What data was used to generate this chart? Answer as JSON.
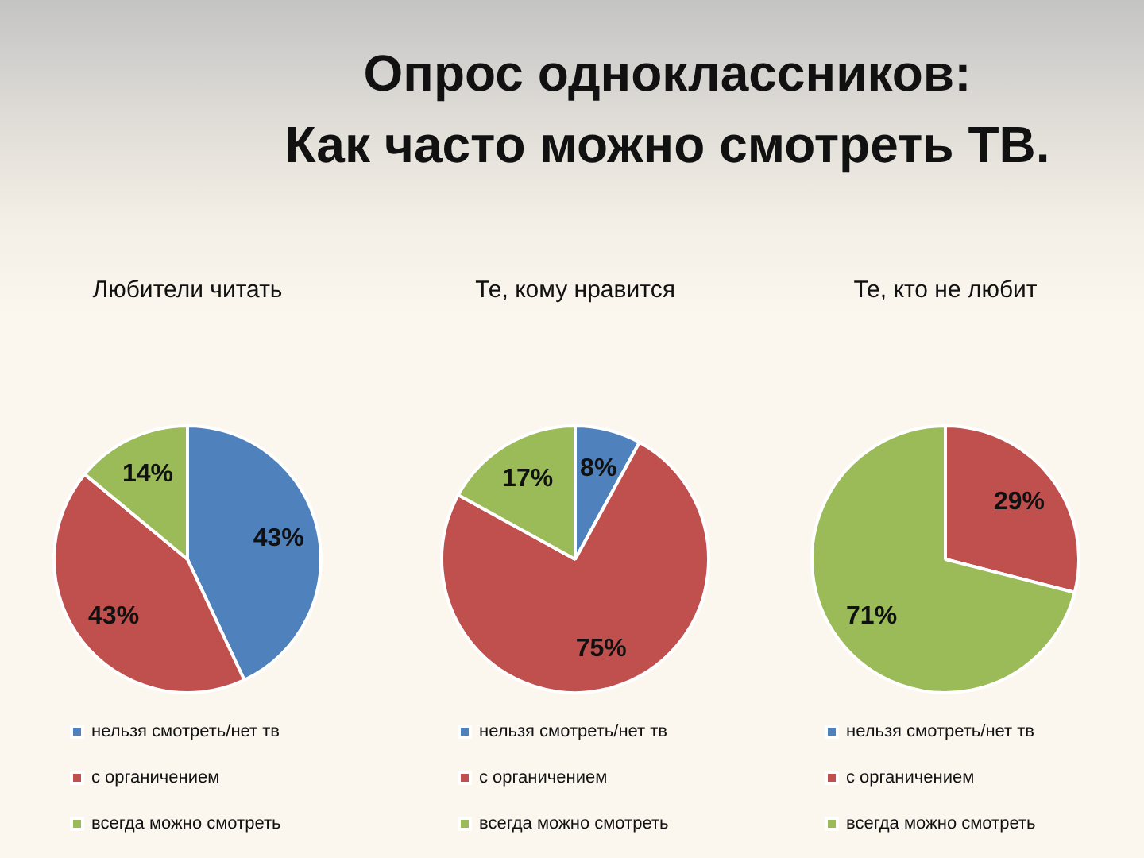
{
  "chart_data": [
    {
      "type": "other",
      "title": "Опрос одноклассников:\nКак часто можно смотреть ТВ."
    },
    {
      "type": "pie",
      "title": "Любители читать",
      "categories": [
        "нельзя смотреть/нет тв",
        "с органичением",
        "всегда можно смотреть"
      ],
      "values": [
        43,
        43,
        14
      ],
      "colors": [
        "#4f81bd",
        "#c0504d",
        "#9bbb59"
      ],
      "value_labels": [
        "43%",
        "43%",
        "14%"
      ],
      "legend": "bottom"
    },
    {
      "type": "pie",
      "title": "Те, кому нравится",
      "categories": [
        "нельзя смотреть/нет тв",
        "с органичением",
        "всегда можно смотреть"
      ],
      "values": [
        8,
        75,
        17
      ],
      "colors": [
        "#4f81bd",
        "#c0504d",
        "#9bbb59"
      ],
      "value_labels": [
        "8%",
        "75%",
        "17%"
      ],
      "legend": "bottom"
    },
    {
      "type": "pie",
      "title": "Те, кто не любит",
      "categories": [
        "нельзя смотреть/нет тв",
        "с органичением",
        "всегда можно смотреть"
      ],
      "values": [
        0,
        29,
        71
      ],
      "colors": [
        "#4f81bd",
        "#c0504d",
        "#9bbb59"
      ],
      "value_labels": [
        null,
        "29%",
        "71%"
      ],
      "legend": "bottom"
    }
  ]
}
